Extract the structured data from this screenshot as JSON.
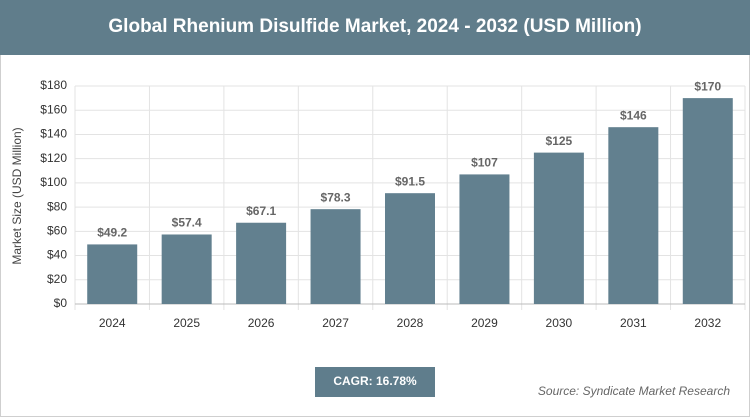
{
  "chart_data": {
    "type": "bar",
    "title": "Global Rhenium Disulfide Market, 2024 - 2032 (USD Million)",
    "y_label": "Market Size (USD Million)",
    "categories": [
      "2024",
      "2025",
      "2026",
      "2027",
      "2028",
      "2029",
      "2030",
      "2031",
      "2032"
    ],
    "values": [
      49.2,
      57.4,
      67.1,
      78.3,
      91.5,
      107,
      125,
      146,
      170
    ],
    "value_labels": [
      "$49.2",
      "$57.4",
      "$67.1",
      "$78.3",
      "$91.5",
      "$107",
      "$125",
      "$146",
      "$170"
    ],
    "color": "#62808f",
    "ylim": [
      0,
      180
    ],
    "yticks": [
      {
        "value": 0,
        "label": "$0"
      },
      {
        "value": 20,
        "label": "$20"
      },
      {
        "value": 40,
        "label": "$40"
      },
      {
        "value": 60,
        "label": "$60"
      },
      {
        "value": 80,
        "label": "$80"
      },
      {
        "value": 100,
        "label": "$100"
      },
      {
        "value": 120,
        "label": "$120"
      },
      {
        "value": 140,
        "label": "$140"
      },
      {
        "value": 160,
        "label": "$160"
      },
      {
        "value": 180,
        "label": "$180"
      }
    ],
    "grid": true,
    "annotation": "CAGR: 16.78%",
    "source": "Source: Syndicate Market Research"
  }
}
